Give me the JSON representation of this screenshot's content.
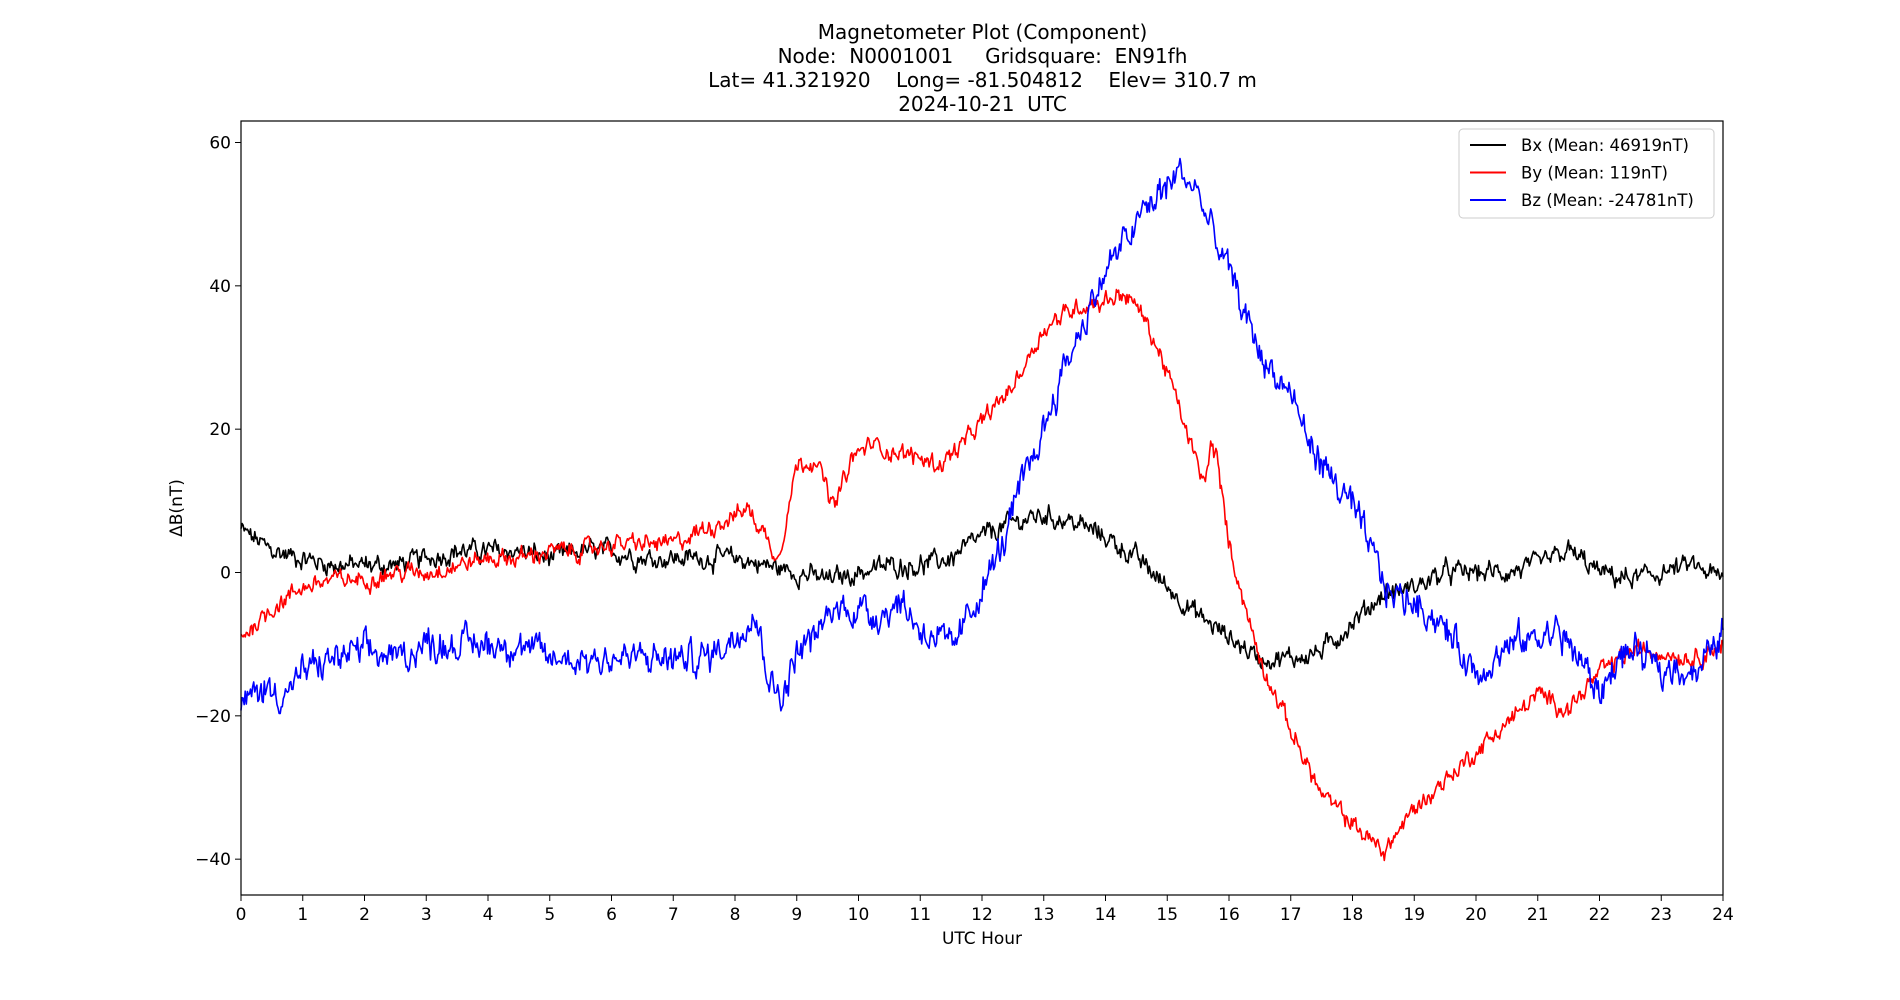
{
  "chart_data": {
    "type": "line",
    "title_lines": [
      "Magnetometer Plot (Component)",
      "Node:  N0001001     Gridsquare:  EN91fh",
      "Lat= 41.321920    Long= -81.504812    Elev= 310.7 m",
      "2024-10-21  UTC"
    ],
    "xlabel": "UTC Hour",
    "ylabel": "ΔB(nT)",
    "xlim": [
      0,
      24
    ],
    "ylim": [
      -45,
      63
    ],
    "xticks": [
      0,
      1,
      2,
      3,
      4,
      5,
      6,
      7,
      8,
      9,
      10,
      11,
      12,
      13,
      14,
      15,
      16,
      17,
      18,
      19,
      20,
      21,
      22,
      23,
      24
    ],
    "yticks": [
      -40,
      -20,
      0,
      20,
      40,
      60
    ],
    "ytick_labels": [
      "−40",
      "−20",
      "0",
      "20",
      "40",
      "60"
    ],
    "grid": false,
    "legend_position": "top-right",
    "series": [
      {
        "name": "Bx (Mean: 46919nT)",
        "color": "#000000",
        "noise": 1.0,
        "x": [
          0,
          0.5,
          1,
          1.5,
          2,
          2.5,
          3,
          3.5,
          4,
          4.5,
          5,
          5.5,
          6,
          6.5,
          7,
          7.5,
          8,
          8.5,
          9,
          9.5,
          10,
          10.5,
          11,
          11.5,
          12,
          12.5,
          13,
          13.5,
          14,
          14.5,
          15,
          15.5,
          16,
          16.5,
          17,
          17.5,
          18,
          18.5,
          19,
          19.5,
          20,
          20.5,
          21,
          21.5,
          22,
          22.5,
          23,
          23.5,
          24
        ],
        "y": [
          6,
          3,
          2,
          1,
          1,
          1,
          2,
          3,
          3,
          3,
          2,
          3,
          3,
          2,
          2,
          2,
          2,
          1,
          0,
          -1,
          0,
          1,
          1,
          2,
          5,
          7,
          8,
          7,
          5,
          2,
          -2,
          -6,
          -9,
          -12,
          -12,
          -11,
          -7,
          -3,
          -2,
          0,
          0,
          0,
          1,
          3,
          0,
          -1,
          0,
          1,
          -1
        ]
      },
      {
        "name": "By (Mean: 119nT)",
        "color": "#ff0000",
        "noise": 0.9,
        "x": [
          0,
          0.5,
          1,
          1.5,
          2,
          2.5,
          3,
          3.5,
          4,
          4.5,
          5,
          5.5,
          6,
          6.5,
          7,
          7.5,
          8,
          8.2,
          8.5,
          8.7,
          9,
          9.3,
          9.6,
          9.9,
          10.2,
          10.5,
          11,
          11.3,
          11.7,
          12,
          12.5,
          13,
          13.5,
          14,
          14.3,
          14.6,
          15,
          15.3,
          15.6,
          15.7,
          15.8,
          16,
          16.3,
          16.5,
          17,
          17.5,
          18,
          18.5,
          19,
          19.5,
          20,
          20.5,
          21,
          21.5,
          22,
          22.5,
          23,
          23.5,
          24
        ],
        "y": [
          -9,
          -5,
          -2,
          -1,
          -1,
          0,
          0,
          1,
          2,
          2,
          3,
          3,
          4,
          4,
          4,
          6,
          8,
          9,
          5,
          2,
          15,
          16,
          9,
          16,
          18,
          17,
          16,
          15,
          18,
          21,
          26,
          34,
          37,
          38,
          39,
          36,
          28,
          20,
          12,
          18,
          16,
          4,
          -6,
          -12,
          -22,
          -31,
          -35,
          -39,
          -33,
          -29,
          -25,
          -21,
          -17,
          -19,
          -14,
          -11,
          -11,
          -12,
          -10
        ]
      },
      {
        "name": "Bz (Mean: -24781nT)",
        "color": "#0000ff",
        "noise": 1.6,
        "x": [
          0,
          0.3,
          0.7,
          1,
          1.5,
          2,
          2.5,
          3,
          3.5,
          4,
          4.5,
          5,
          5.5,
          6,
          6.5,
          7,
          7.5,
          8,
          8.3,
          8.6,
          8.8,
          9,
          9.3,
          9.6,
          10,
          10.3,
          10.7,
          11,
          11.3,
          11.5,
          11.8,
          12,
          12.3,
          12.6,
          13,
          13.3,
          13.6,
          14,
          14.3,
          14.6,
          15,
          15.2,
          15.5,
          15.7,
          16,
          16.3,
          16.6,
          17,
          17.3,
          17.6,
          18,
          18.3,
          18.6,
          19,
          19.3,
          19.6,
          20,
          20.3,
          20.6,
          21,
          21.3,
          21.6,
          22,
          22.3,
          22.6,
          23,
          23.3,
          23.6,
          24
        ],
        "y": [
          -19,
          -16,
          -17,
          -14,
          -12,
          -11,
          -12,
          -10,
          -10,
          -10,
          -10,
          -12,
          -12,
          -12,
          -12,
          -12,
          -12,
          -9,
          -5,
          -16,
          -17,
          -11,
          -9,
          -5,
          -5,
          -6,
          -4,
          -8,
          -9,
          -11,
          -6,
          -2,
          3,
          11,
          20,
          28,
          34,
          42,
          46,
          50,
          54,
          56,
          53,
          48,
          42,
          35,
          29,
          25,
          18,
          14,
          9,
          3,
          -3,
          -4,
          -6,
          -9,
          -14,
          -12,
          -10,
          -9,
          -8,
          -11,
          -17,
          -12,
          -11,
          -14,
          -13,
          -14,
          -8
        ]
      }
    ]
  }
}
